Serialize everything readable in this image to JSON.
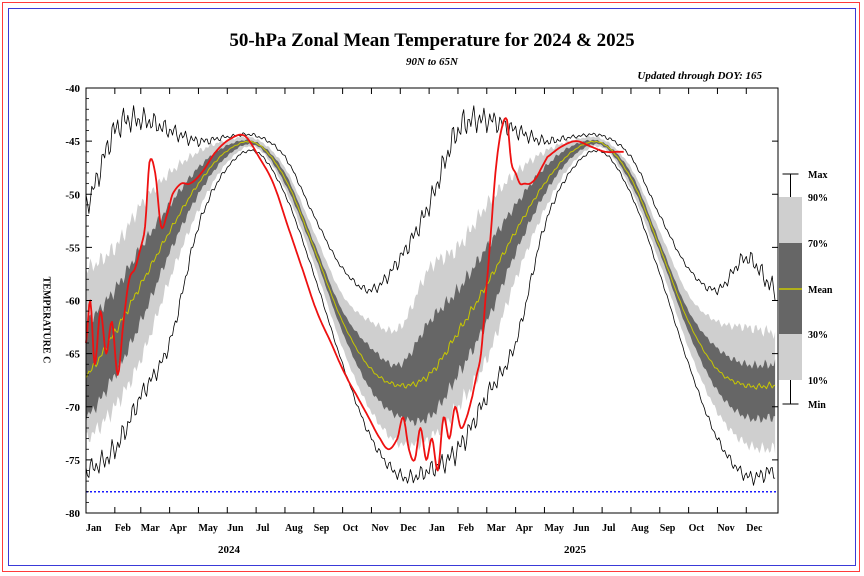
{
  "chart_data": {
    "type": "area",
    "title": "50-hPa Zonal Mean Temperature for 2024 & 2025",
    "subtitle": "90N to 65N",
    "note": "Updated through DOY: 165",
    "ylabel": "TEMPERATURE C",
    "ylim": [
      -80,
      -40
    ],
    "yticks": [
      -40,
      -45,
      -50,
      -55,
      -60,
      -65,
      -70,
      -75,
      -80
    ],
    "months": [
      "Jan",
      "Feb",
      "Mar",
      "Apr",
      "May",
      "Jun",
      "Jul",
      "Aug",
      "Sep",
      "Oct",
      "Nov",
      "Dec",
      "Jan",
      "Feb",
      "Mar",
      "Apr",
      "May",
      "Jun",
      "Jul",
      "Aug",
      "Sep",
      "Oct",
      "Nov",
      "Dec"
    ],
    "years": [
      "2024",
      "2025"
    ],
    "x_months": [
      0.0,
      1.0,
      1.9,
      2.9,
      3.9,
      4.9,
      5.9,
      6.9,
      7.9,
      8.9,
      9.9,
      10.9,
      11.9,
      12.9,
      13.9,
      14.9,
      15.9,
      16.9,
      17.9,
      18.9,
      19.9,
      20.9,
      21.9,
      22.9,
      23.9
    ],
    "climatology": {
      "max": [
        -51,
        -44,
        -43,
        -44,
        -45,
        -44.6,
        -44.5,
        -46.5,
        -52,
        -57,
        -59,
        -56,
        -51,
        -44,
        -43,
        -44,
        -45,
        -44.6,
        -44.5,
        -46.5,
        -52,
        -57,
        -59,
        -56,
        -59
      ],
      "p90": [
        -57,
        -55,
        -51,
        -48,
        -46,
        -44.9,
        -44.8,
        -47.5,
        -53.5,
        -59.5,
        -62,
        -62.5,
        -57,
        -55,
        -51,
        -48,
        -46,
        -44.9,
        -44.8,
        -47.5,
        -53.5,
        -59.5,
        -62,
        -62.5,
        -63
      ],
      "p70": [
        -62,
        -59,
        -55,
        -51,
        -47.5,
        -45.4,
        -45.1,
        -48,
        -54.5,
        -61,
        -64.5,
        -66,
        -62,
        -59,
        -55,
        -51,
        -47.5,
        -45.4,
        -45.1,
        -48,
        -54.5,
        -61,
        -64.5,
        -66,
        -66
      ],
      "mean": [
        -67,
        -63,
        -58.5,
        -53.5,
        -49,
        -45.9,
        -45.2,
        -48.5,
        -55,
        -62,
        -66.5,
        -68,
        -67,
        -63,
        -58.5,
        -53.5,
        -49,
        -45.9,
        -45.2,
        -48.5,
        -55,
        -62,
        -66.5,
        -68,
        -68
      ],
      "p30": [
        -71,
        -67,
        -62,
        -55.5,
        -50,
        -46.4,
        -45.4,
        -49,
        -55.5,
        -63,
        -68.5,
        -71,
        -71,
        -67,
        -62,
        -55.5,
        -50,
        -46.4,
        -45.4,
        -49,
        -55.5,
        -63,
        -68.5,
        -71,
        -71
      ],
      "p10": [
        -73,
        -70,
        -65.5,
        -58,
        -51.5,
        -47,
        -45.6,
        -49.5,
        -56.5,
        -64.5,
        -70.5,
        -73.5,
        -73,
        -70,
        -65.5,
        -58,
        -51.5,
        -47,
        -45.6,
        -49.5,
        -56.5,
        -64.5,
        -70.5,
        -73.5,
        -74
      ],
      "min": [
        -76,
        -74,
        -69,
        -64,
        -53,
        -47.5,
        -46,
        -50,
        -57.5,
        -66,
        -73,
        -76.5,
        -76,
        -74,
        -69,
        -64,
        -53,
        -47.5,
        -46,
        -50,
        -57.5,
        -66,
        -73,
        -76.5,
        -76
      ]
    },
    "series": [
      {
        "x": [
          0.0,
          0.15,
          0.3,
          0.5,
          0.7,
          0.9,
          1.1,
          1.3,
          1.5,
          1.7,
          1.9,
          2.05,
          2.2,
          2.4,
          2.6,
          2.8,
          3.0,
          3.3,
          3.6,
          4.0,
          4.5,
          5.0,
          5.5,
          6.0,
          6.5,
          7.0,
          7.5,
          8.0,
          8.5,
          9.0,
          9.4,
          9.8,
          10.2,
          10.5,
          10.8,
          11.0,
          11.2,
          11.4,
          11.6,
          11.8,
          12.0,
          12.2,
          12.4,
          12.6,
          12.8,
          13.0,
          13.2,
          13.4,
          13.55,
          13.7,
          13.85,
          14.0,
          14.2,
          14.4,
          14.6,
          14.75,
          14.9,
          15.05,
          15.2,
          15.4,
          15.6,
          15.8,
          16.0,
          16.5,
          17.0,
          17.5,
          18.0,
          18.5,
          18.65
        ],
        "y": [
          -64,
          -60,
          -66,
          -61,
          -65,
          -62,
          -67,
          -62,
          -58,
          -57,
          -55,
          -53,
          -47,
          -48,
          -53,
          -52,
          -50,
          -49,
          -49,
          -48,
          -46,
          -44.8,
          -44.5,
          -46.5,
          -49,
          -53,
          -57,
          -61,
          -64,
          -67,
          -69,
          -71,
          -73,
          -74,
          -73,
          -71,
          -74,
          -75,
          -72,
          -75,
          -73,
          -76,
          -71,
          -73,
          -70,
          -72,
          -71,
          -69,
          -67,
          -65,
          -60,
          -55,
          -48,
          -44,
          -43,
          -47,
          -48,
          -49,
          -49,
          -49,
          -48.5,
          -47.5,
          -46.5,
          -45.5,
          -45,
          -45.5,
          -46,
          -46,
          -46
        ]
      }
    ],
    "ref_line": -78,
    "legend": {
      "labels": [
        "Max",
        "90%",
        "70%",
        "Mean",
        "30%",
        "10%",
        "Min"
      ],
      "placement": "right"
    },
    "colors": {
      "band_10_90": "#cfcfcf",
      "band_30_70": "#666666",
      "mean": "#c8c800",
      "extremes": "#000000",
      "observed": "#ee1111",
      "ref_line": "#1a1aff",
      "frame_outer": "#ff3b3b",
      "frame_inner": "#3a3ad8"
    }
  }
}
